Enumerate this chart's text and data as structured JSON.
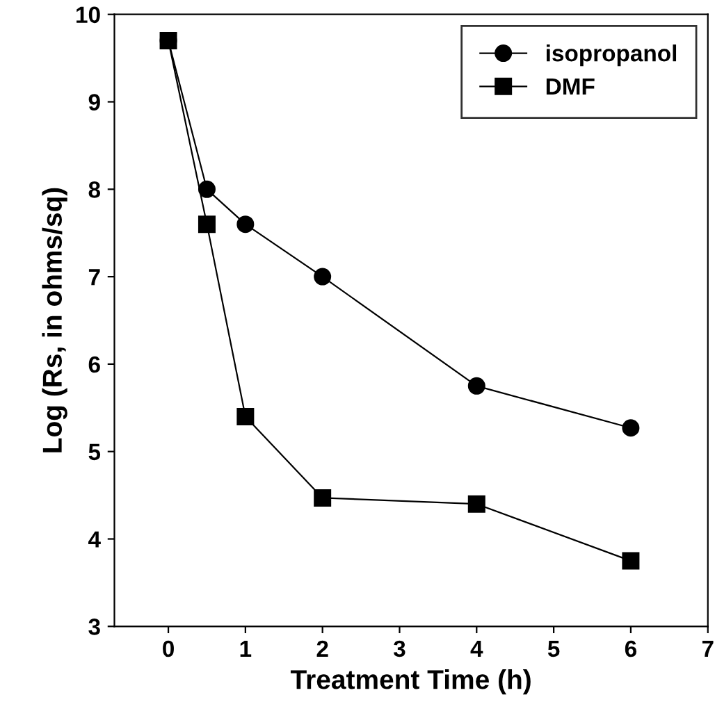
{
  "chart_data": {
    "type": "line",
    "xlabel": "Treatment Time (h)",
    "ylabel": "Log (Rs, in ohms/sq)",
    "xlim": [
      -0.7,
      7
    ],
    "xticks": [
      0,
      1,
      2,
      3,
      4,
      5,
      6,
      7
    ],
    "ylim": [
      3,
      10
    ],
    "yticks": [
      3,
      4,
      5,
      6,
      7,
      8,
      9,
      10
    ],
    "grid": false,
    "legend": "top right",
    "line_style": "solid",
    "series": [
      {
        "name": "isopropanol",
        "color": "#000000",
        "marker": "circle",
        "x": [
          0,
          0.5,
          1,
          2,
          4,
          6
        ],
        "values": [
          9.7,
          8.0,
          7.6,
          7.0,
          5.75,
          5.27
        ]
      },
      {
        "name": "DMF",
        "color": "#000000",
        "marker": "square",
        "x": [
          0,
          0.5,
          1,
          2,
          4,
          6
        ],
        "values": [
          9.7,
          7.6,
          5.4,
          4.47,
          4.4,
          3.75
        ]
      }
    ]
  }
}
